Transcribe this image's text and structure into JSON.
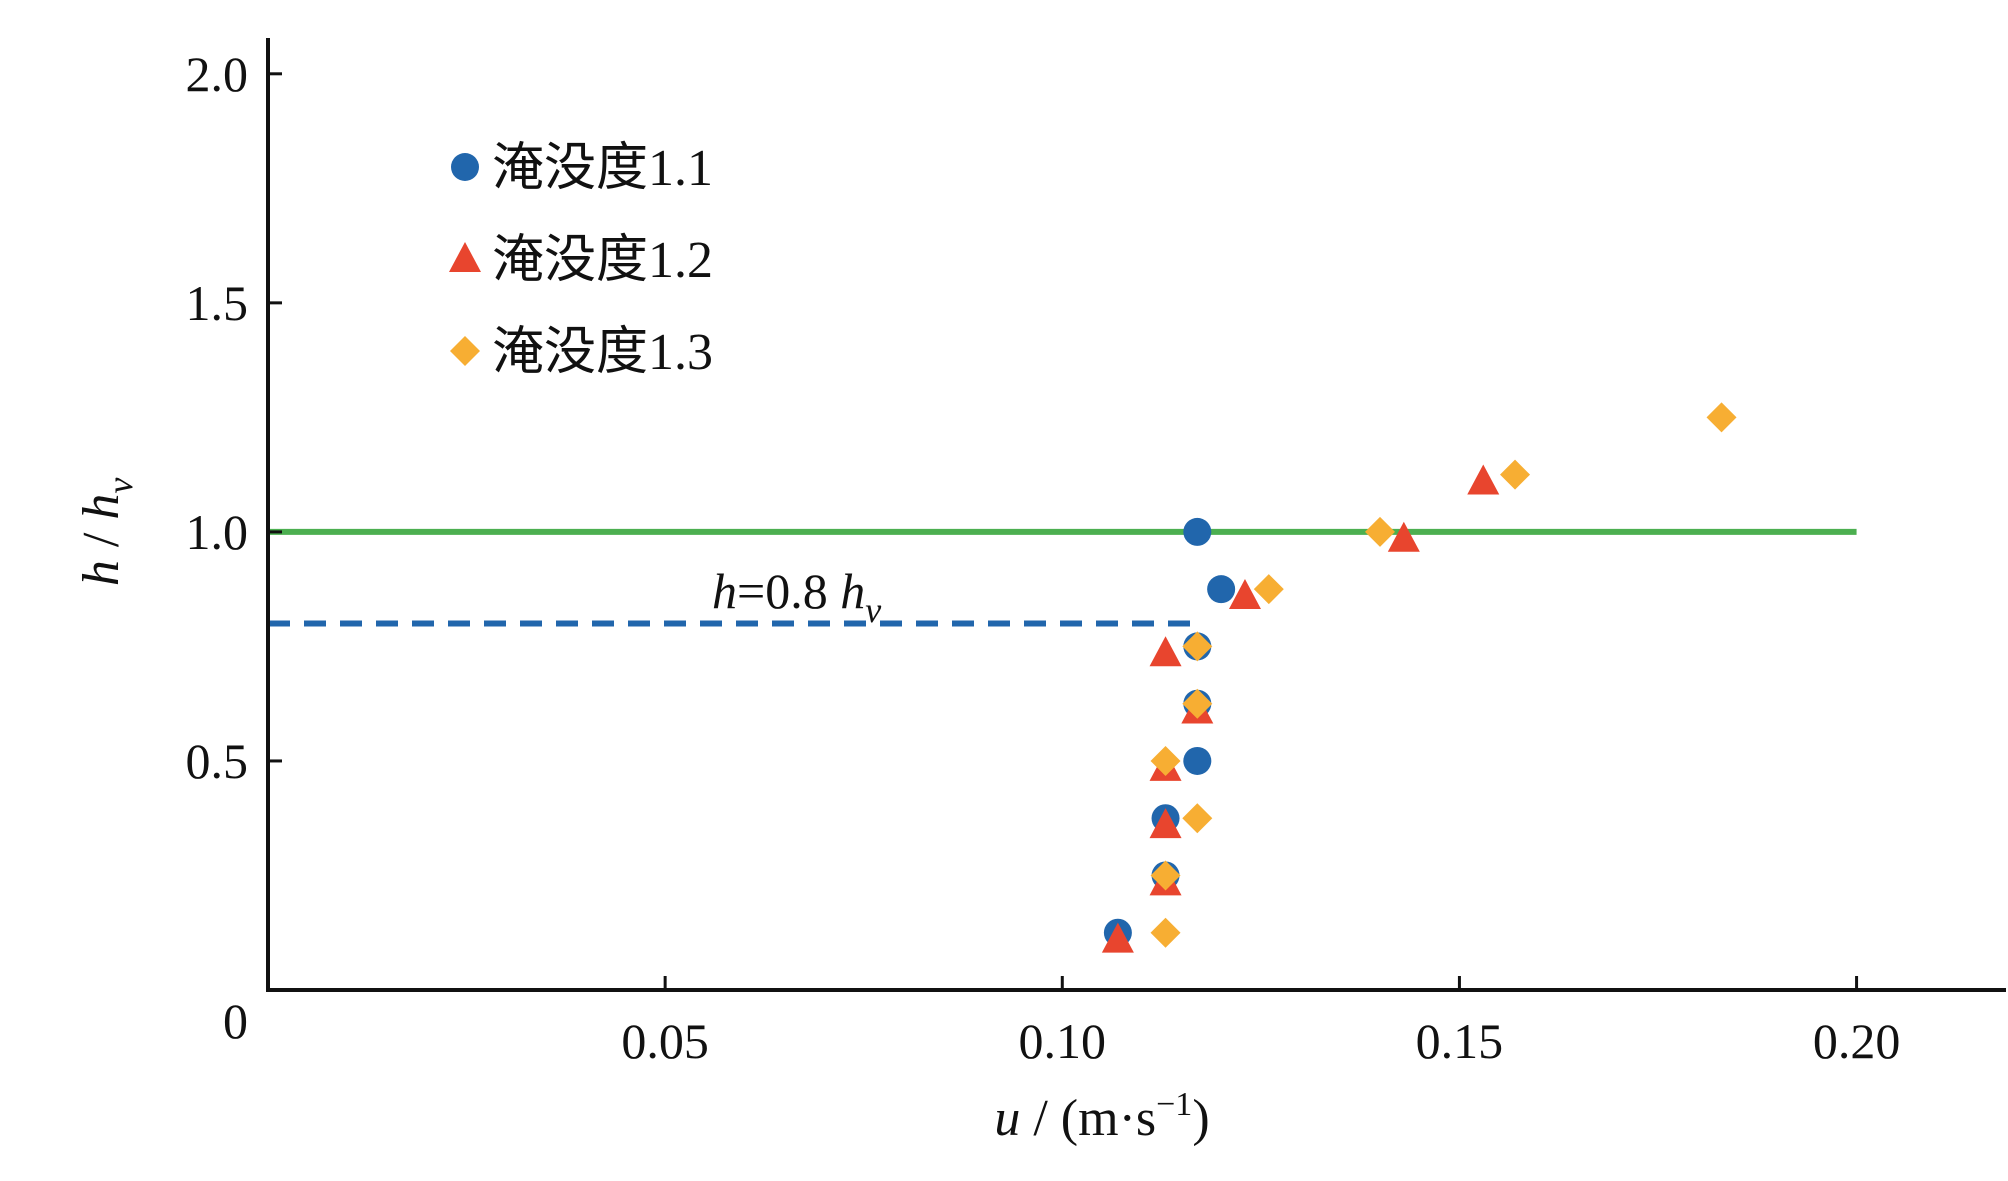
{
  "chart_data": {
    "type": "scatter",
    "title": "",
    "xlabel": {
      "var": "u",
      "pre": " / (m·s",
      "sup": "−1",
      "post": ")"
    },
    "ylabel": {
      "num": "h",
      "sep": " / ",
      "den": "h",
      "den_sub": "v"
    },
    "xlim": [
      0,
      0.21
    ],
    "ylim": [
      0,
      2.1
    ],
    "x_ticks": [
      {
        "value": 0.05,
        "label": "0.05"
      },
      {
        "value": 0.1,
        "label": "0.10"
      },
      {
        "value": 0.15,
        "label": "0.15"
      },
      {
        "value": 0.2,
        "label": "0.20"
      }
    ],
    "y_ticks": [
      {
        "value": 0.5,
        "label": "0.5"
      },
      {
        "value": 1.0,
        "label": "1.0"
      },
      {
        "value": 1.5,
        "label": "1.5"
      },
      {
        "value": 2.0,
        "label": "2.0"
      }
    ],
    "origin_label": "0",
    "grid": false,
    "legend_position": "top-left",
    "series": [
      {
        "name": "淹没度1.1",
        "marker": "circle",
        "color": "#2166AC",
        "points": [
          [
            0.107,
            0.125
          ],
          [
            0.113,
            0.25
          ],
          [
            0.113,
            0.375
          ],
          [
            0.117,
            0.5
          ],
          [
            0.117,
            0.625
          ],
          [
            0.117,
            0.75
          ],
          [
            0.12,
            0.875
          ],
          [
            0.117,
            1.0
          ]
        ]
      },
      {
        "name": "淹没度1.2",
        "marker": "triangle",
        "color": "#E8452E",
        "points": [
          [
            0.107,
            0.11
          ],
          [
            0.113,
            0.235
          ],
          [
            0.113,
            0.36
          ],
          [
            0.113,
            0.485
          ],
          [
            0.117,
            0.61
          ],
          [
            0.113,
            0.735
          ],
          [
            0.123,
            0.86
          ],
          [
            0.143,
            0.985
          ],
          [
            0.153,
            1.11
          ]
        ]
      },
      {
        "name": "淹没度1.3",
        "marker": "diamond",
        "color": "#F7AE33",
        "points": [
          [
            0.113,
            0.125
          ],
          [
            0.113,
            0.25
          ],
          [
            0.117,
            0.375
          ],
          [
            0.113,
            0.5
          ],
          [
            0.117,
            0.625
          ],
          [
            0.117,
            0.75
          ],
          [
            0.126,
            0.875
          ],
          [
            0.14,
            1.0
          ],
          [
            0.157,
            1.125
          ],
          [
            0.183,
            1.25
          ]
        ]
      }
    ],
    "reference_lines": [
      {
        "kind": "solid",
        "color": "#4CAF50",
        "y": 1.0,
        "x_from": 0,
        "x_to": 0.2
      },
      {
        "kind": "dashed",
        "color": "#2166AC",
        "y": 0.8,
        "x_from": 0,
        "x_to": 0.117
      }
    ],
    "annotation": {
      "var": "h",
      "eq": "=0.8 ",
      "var2": "h",
      "sub": "v",
      "at": [
        0.11,
        0.85
      ]
    }
  }
}
